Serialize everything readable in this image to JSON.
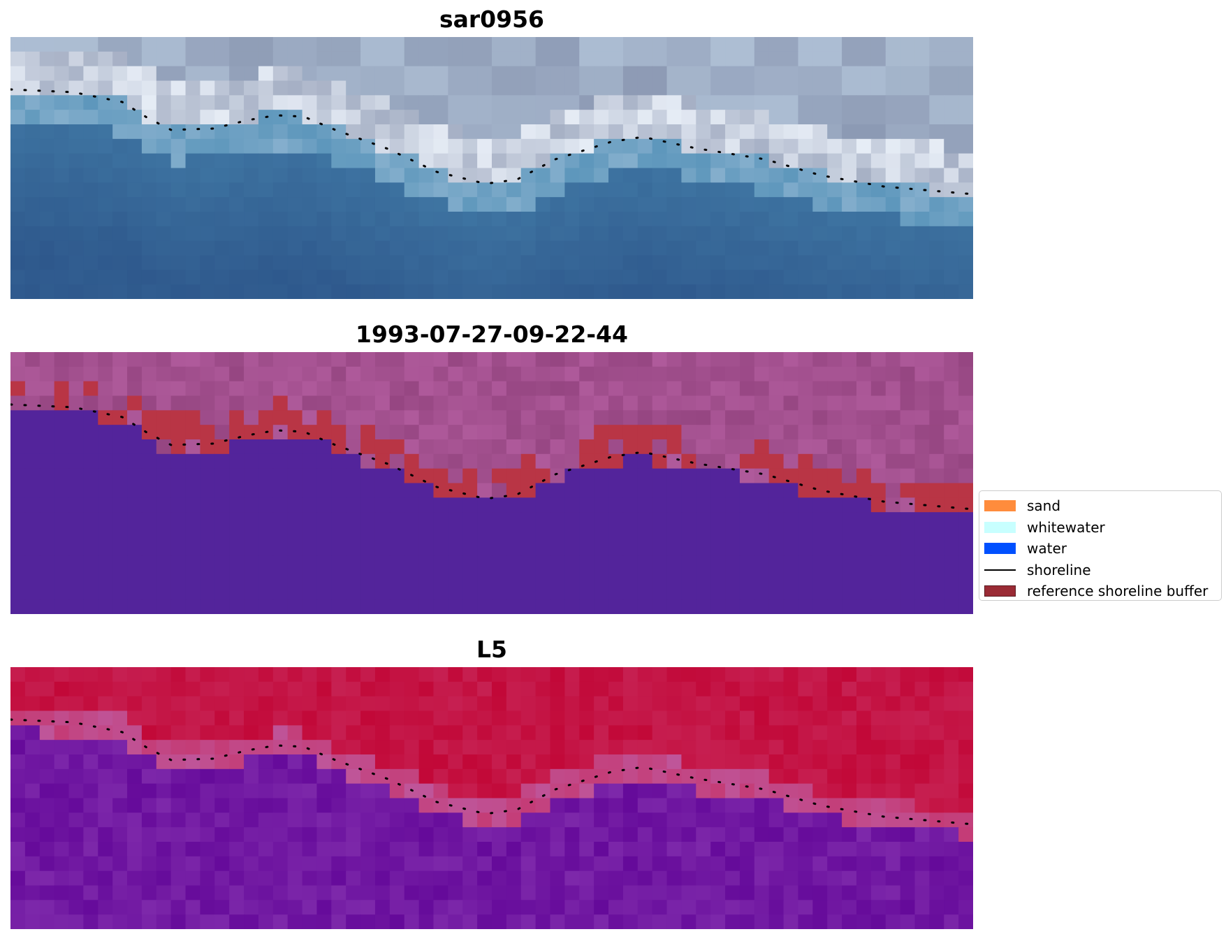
{
  "panels": [
    {
      "title": "sar0956",
      "kind": "rgb-image"
    },
    {
      "title": "1993-07-27-09-22-44",
      "kind": "classified-image"
    },
    {
      "title": "L5",
      "kind": "index-image"
    }
  ],
  "legend": {
    "items": [
      {
        "label": "sand",
        "type": "patch",
        "color": "#ff8c3c"
      },
      {
        "label": "whitewater",
        "type": "patch",
        "color": "#c8ffff"
      },
      {
        "label": "water",
        "type": "patch",
        "color": "#0050ff"
      },
      {
        "label": "shoreline",
        "type": "line",
        "color": "#000000"
      },
      {
        "label": "reference shoreline buffer",
        "type": "patch",
        "color": "#9a2b35"
      }
    ]
  },
  "colors": {
    "water_class": "#53249b",
    "buffer": "#b93545",
    "land_purple": "#9a4a86",
    "index_high": "#c0002f",
    "index_low": "#650a9a",
    "rgb_sky": "#c6d8ea",
    "rgb_water": "#2f5f8f"
  }
}
